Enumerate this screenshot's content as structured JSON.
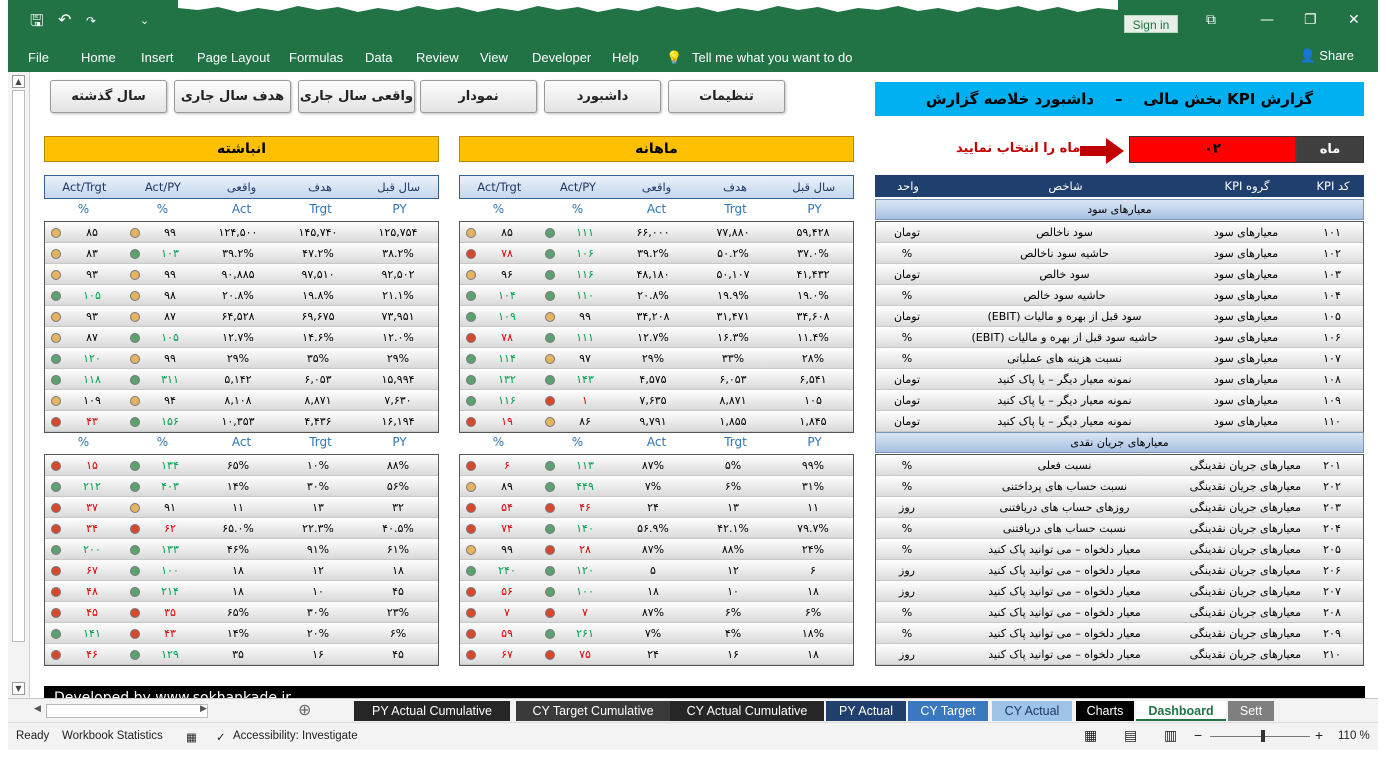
{
  "menu": {
    "items": [
      "File",
      "Home",
      "Insert",
      "Page Layout",
      "Formulas",
      "Data",
      "Review",
      "View",
      "Developer",
      "Help"
    ],
    "tell": "Tell me what you want to do",
    "share": "Share",
    "signin": "Sign in"
  },
  "nav_buttons": [
    "سال گذشته",
    "هدف سال جاری",
    "واقعی سال جاری",
    "نمودار",
    "داشبورد",
    "تنظیمات"
  ],
  "title": "گزارش KPI بخش مالی    –    داشبورد خلاصه گزارش",
  "month": {
    "label": "ماه",
    "value": "۰۲",
    "prompt": "ماه را انتخاب نمایید"
  },
  "sections": {
    "cumulative": "انباشته",
    "monthly": "ماهانه"
  },
  "col_headers": [
    "سال قبل",
    "هدف",
    "واقعی",
    "Act/PY",
    "Act/Trgt"
  ],
  "unit_row": [
    "PY",
    "Trgt",
    "Act",
    "%",
    "%"
  ],
  "kpi_header": {
    "code": "کد KPI",
    "group": "گروه KPI",
    "name": "شاخص",
    "unit": "واحد"
  },
  "groups": {
    "profit": "معیارهای سود",
    "cash": "معیارهای جریان نقدی"
  },
  "kpis_profit": [
    {
      "code": "۱۰۱",
      "group": "معیارهای سود",
      "name": "سود ناخالص",
      "unit": "تومان"
    },
    {
      "code": "۱۰۲",
      "group": "معیارهای سود",
      "name": "حاشیه سود ناخالص",
      "unit": "%"
    },
    {
      "code": "۱۰۳",
      "group": "معیارهای سود",
      "name": "سود خالص",
      "unit": "تومان"
    },
    {
      "code": "۱۰۴",
      "group": "معیارهای سود",
      "name": "حاشیه سود خالص",
      "unit": "%"
    },
    {
      "code": "۱۰۵",
      "group": "معیارهای سود",
      "name": "سود قبل از بهره و مالیات (EBIT)",
      "unit": "تومان"
    },
    {
      "code": "۱۰۶",
      "group": "معیارهای سود",
      "name": "حاشیه سود قبل از بهره و مالیات (EBIT)",
      "unit": "%"
    },
    {
      "code": "۱۰۷",
      "group": "معیارهای سود",
      "name": "نسبت هزینه های عملیاتی",
      "unit": "%"
    },
    {
      "code": "۱۰۸",
      "group": "معیارهای سود",
      "name": "نمونه معیار دیگر – یا پاک کنید",
      "unit": "تومان"
    },
    {
      "code": "۱۰۹",
      "group": "معیارهای سود",
      "name": "نمونه معیار دیگر – یا پاک کنید",
      "unit": "تومان"
    },
    {
      "code": "۱۱۰",
      "group": "معیارهای سود",
      "name": "نمونه معیار دیگر – یا پاک کنید",
      "unit": "تومان"
    }
  ],
  "kpis_cash": [
    {
      "code": "۲۰۱",
      "group": "معیارهای جریان نقدینگی",
      "name": "نسبت فعلی",
      "unit": "%"
    },
    {
      "code": "۲۰۲",
      "group": "معیارهای جریان نقدینگی",
      "name": "نسبت حساب های پرداختنی",
      "unit": "%"
    },
    {
      "code": "۲۰۳",
      "group": "معیارهای جریان نقدینگی",
      "name": "روزهای حساب های دریافتنی",
      "unit": "روز"
    },
    {
      "code": "۲۰۴",
      "group": "معیارهای جریان نقدینگی",
      "name": "نسبت حساب های دریافتنی",
      "unit": "%"
    },
    {
      "code": "۲۰۵",
      "group": "معیارهای جریان نقدینگی",
      "name": "معیار دلخواه – می توانید پاک کنید",
      "unit": "%"
    },
    {
      "code": "۲۰۶",
      "group": "معیارهای جریان نقدینگی",
      "name": "معیار دلخواه – می توانید پاک کنید",
      "unit": "روز"
    },
    {
      "code": "۲۰۷",
      "group": "معیارهای جریان نقدینگی",
      "name": "معیار دلخواه – می توانید پاک کنید",
      "unit": "روز"
    },
    {
      "code": "۲۰۸",
      "group": "معیارهای جریان نقدینگی",
      "name": "معیار دلخواه – می توانید پاک کنید",
      "unit": "%"
    },
    {
      "code": "۲۰۹",
      "group": "معیارهای جریان نقدینگی",
      "name": "معیار دلخواه – می توانید پاک کنید",
      "unit": "%"
    },
    {
      "code": "۲۱۰",
      "group": "معیارهای جریان نقدینگی",
      "name": "معیار دلخواه – می توانید پاک کنید",
      "unit": "روز"
    }
  ],
  "monthly_profit": [
    [
      "۵۹,۴۲۸",
      "۷۷,۸۸۰",
      "۶۶,۰۰۰",
      "۱۱۱",
      "g",
      "۸۵",
      "a"
    ],
    [
      "۳۷.۰%",
      "۵۰.۲%",
      "۳۹.۲%",
      "۱۰۶",
      "g",
      "۷۸",
      "r"
    ],
    [
      "۴۱,۴۳۲",
      "۵۰,۱۰۷",
      "۴۸,۱۸۰",
      "۱۱۶",
      "g",
      "۹۶",
      "a"
    ],
    [
      "۱۹.۰%",
      "۱۹.۹%",
      "۲۰.۸%",
      "۱۱۰",
      "g",
      "۱۰۴",
      "g"
    ],
    [
      "۳۴,۶۰۸",
      "۳۱,۴۷۱",
      "۳۴,۲۰۸",
      "۹۹",
      "a",
      "۱۰۹",
      "g"
    ],
    [
      "۱۱.۴%",
      "۱۶.۳%",
      "۱۲.۷%",
      "۱۱۱",
      "g",
      "۷۸",
      "r"
    ],
    [
      "۲۸%",
      "۳۳%",
      "۲۹%",
      "۹۷",
      "a",
      "۱۱۴",
      "g"
    ],
    [
      "۶,۵۴۱",
      "۶,۰۵۳",
      "۴,۵۷۵",
      "۱۴۳",
      "g",
      "۱۳۲",
      "g"
    ],
    [
      "۱۰۵",
      "۸,۸۷۱",
      "۷,۶۳۵",
      "۱",
      "r",
      "۱۱۶",
      "g"
    ],
    [
      "۱,۸۴۵",
      "۱,۸۵۵",
      "۹,۷۹۱",
      "۸۶",
      "a",
      "۱۹",
      "r"
    ]
  ],
  "monthly_cash": [
    [
      "۹۹%",
      "۵%",
      "۸۷%",
      "۱۱۳",
      "g",
      "۶",
      "r"
    ],
    [
      "۳۱%",
      "۶%",
      "۷%",
      "۴۴۹",
      "g",
      "۸۹",
      "a"
    ],
    [
      "۱۱",
      "۱۳",
      "۲۴",
      "۴۶",
      "r",
      "۵۴",
      "r"
    ],
    [
      "۷۹.۷%",
      "۴۲.۱%",
      "۵۶.۹%",
      "۱۴۰",
      "g",
      "۷۴",
      "r"
    ],
    [
      "۲۴%",
      "۸۸%",
      "۸۷%",
      "۲۸",
      "r",
      "۹۹",
      "a"
    ],
    [
      "۶",
      "۱۲",
      "۵",
      "۱۲۰",
      "g",
      "۲۴۰",
      "g"
    ],
    [
      "۱۸",
      "۱۰",
      "۱۸",
      "۱۰۰",
      "g",
      "۵۶",
      "r"
    ],
    [
      "۶%",
      "۶%",
      "۸۷%",
      "۷",
      "r",
      "۷",
      "r"
    ],
    [
      "۱۸%",
      "۴%",
      "۷%",
      "۲۶۱",
      "g",
      "۵۹",
      "r"
    ],
    [
      "۱۸",
      "۱۶",
      "۲۴",
      "۷۵",
      "r",
      "۶۷",
      "r"
    ]
  ],
  "cumulative_profit": [
    [
      "۱۲۵,۷۵۴",
      "۱۴۵,۷۴۰",
      "۱۲۴,۵۰۰",
      "۹۹",
      "a",
      "۸۵",
      "a"
    ],
    [
      "۳۸.۲%",
      "۴۷.۲%",
      "۳۹.۲%",
      "۱۰۳",
      "g",
      "۸۳",
      "a"
    ],
    [
      "۹۲,۵۰۲",
      "۹۷,۵۱۰",
      "۹۰,۸۸۵",
      "۹۹",
      "a",
      "۹۳",
      "a"
    ],
    [
      "۲۱.۱%",
      "۱۹.۸%",
      "۲۰.۸%",
      "۹۸",
      "a",
      "۱۰۵",
      "g"
    ],
    [
      "۷۳,۹۵۱",
      "۶۹,۶۷۵",
      "۶۴,۵۲۸",
      "۸۷",
      "a",
      "۹۳",
      "a"
    ],
    [
      "۱۲.۰%",
      "۱۴.۶%",
      "۱۲.۷%",
      "۱۰۵",
      "g",
      "۸۷",
      "a"
    ],
    [
      "۲۹%",
      "۳۵%",
      "۲۹%",
      "۹۹",
      "a",
      "۱۲۰",
      "g"
    ],
    [
      "۱۵,۹۹۴",
      "۶,۰۵۳",
      "۵,۱۴۲",
      "۳۱۱",
      "g",
      "۱۱۸",
      "g"
    ],
    [
      "۷,۶۳۰",
      "۸,۸۷۱",
      "۸,۱۰۸",
      "۹۴",
      "a",
      "۱۰۹",
      "a"
    ],
    [
      "۱۶,۱۹۴",
      "۴,۴۳۶",
      "۱۰,۳۵۳",
      "۱۵۶",
      "g",
      "۴۳",
      "r"
    ]
  ],
  "cumulative_cash": [
    [
      "۸۸%",
      "۱۰%",
      "۶۵%",
      "۱۳۴",
      "g",
      "۱۵",
      "r"
    ],
    [
      "۵۶%",
      "۳۰%",
      "۱۴%",
      "۴۰۳",
      "g",
      "۲۱۲",
      "g"
    ],
    [
      "۳۲",
      "۱۳",
      "۱۱",
      "۹۱",
      "a",
      "۳۷",
      "r"
    ],
    [
      "۴۰.۵%",
      "۲۲.۳%",
      "۶۵.۰%",
      "۶۲",
      "r",
      "۳۴",
      "r"
    ],
    [
      "۶۱%",
      "۹۱%",
      "۴۶%",
      "۱۳۳",
      "g",
      "۲۰۰",
      "g"
    ],
    [
      "۱۸",
      "۱۲",
      "۱۸",
      "۱۰۰",
      "g",
      "۶۷",
      "r"
    ],
    [
      "۴۵",
      "۱۰",
      "۱۸",
      "۲۱۴",
      "g",
      "۴۸",
      "r"
    ],
    [
      "۲۳%",
      "۳۰%",
      "۶۵%",
      "۳۵",
      "r",
      "۴۵",
      "r"
    ],
    [
      "۶%",
      "۲۰%",
      "۱۴%",
      "۴۳",
      "r",
      "۱۴۱",
      "g"
    ],
    [
      "۴۵",
      "۱۶",
      "۳۵",
      "۱۲۹",
      "g",
      "۴۶",
      "r"
    ]
  ],
  "bottom_bar": "Developed by www.sokhankade.ir",
  "tabs": [
    {
      "label": "PY Actual Cumulative",
      "bg": "#262626",
      "fg": "#ffffff"
    },
    {
      "label": "CY Target Cumulative",
      "bg": "#3a3a3a",
      "fg": "#ffffff"
    },
    {
      "label": "CY Actual Cumulative",
      "bg": "#262626",
      "fg": "#ffffff"
    },
    {
      "label": "PY Actual",
      "bg": "#1f3f6e",
      "fg": "#ffffff"
    },
    {
      "label": "CY Target",
      "bg": "#3a78c0",
      "fg": "#ffffff"
    },
    {
      "label": "CY Actual",
      "bg": "#9dc3e6",
      "fg": "#1f3864"
    },
    {
      "label": "Charts",
      "bg": "#000000",
      "fg": "#ffffff"
    },
    {
      "label": "Dashboard",
      "bg": "#ffffff",
      "fg": "#217346"
    },
    {
      "label": "Sett",
      "bg": "#7f7f7f",
      "fg": "#ffffff"
    }
  ],
  "status": {
    "ready": "Ready",
    "stats": "Workbook Statistics",
    "access": "Accessibility: Investigate",
    "zoom": "110 %"
  }
}
